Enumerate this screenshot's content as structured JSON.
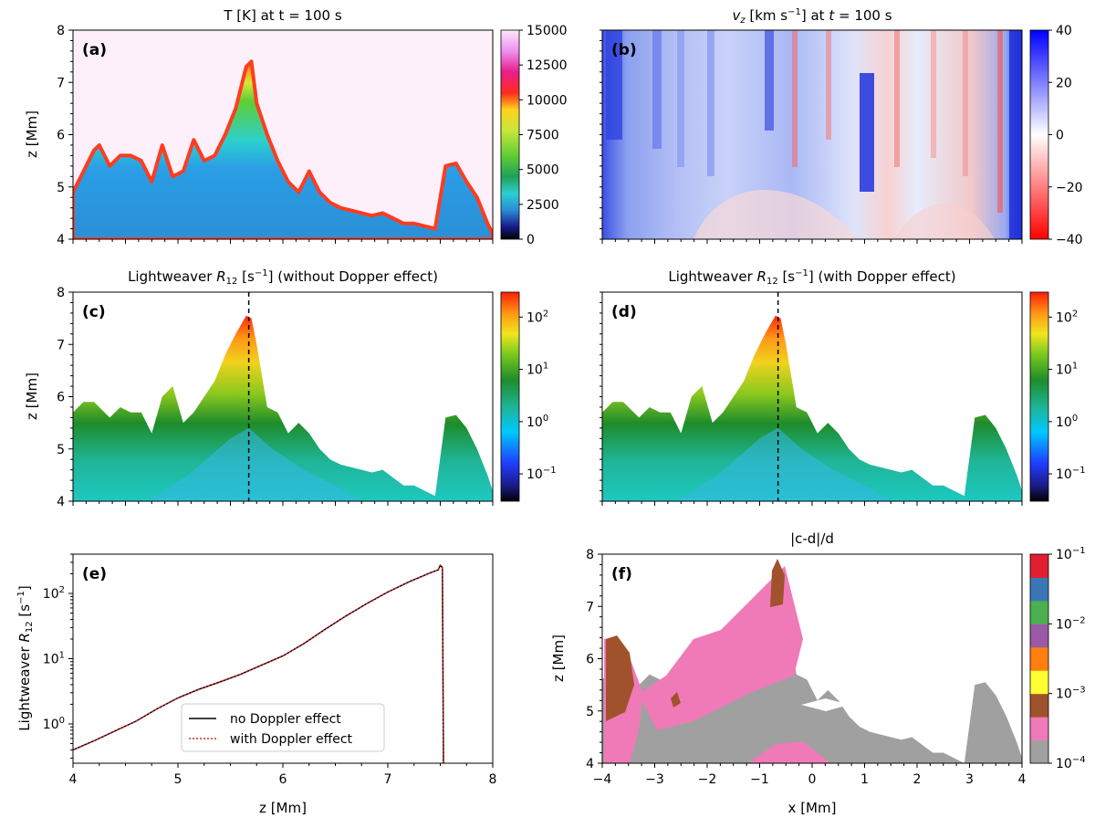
{
  "chart_data": [
    {
      "panel": "(a)",
      "type": "heatmap",
      "title": "T [K] at t = 100 s",
      "xlim": [
        -4,
        4
      ],
      "ylim": [
        4,
        8
      ],
      "ylabel": "z [Mm]",
      "yticks": [
        "4",
        "5",
        "6",
        "7",
        "8"
      ],
      "colorbar": {
        "scale": "linear",
        "range": [
          0,
          15000
        ],
        "ticks": [
          "0",
          "2500",
          "5000",
          "7500",
          "10000",
          "12500",
          "15000"
        ]
      },
      "boundary_x": [
        -4,
        -3.8,
        -3.6,
        -3.5,
        -3.3,
        -3.1,
        -2.9,
        -2.7,
        -2.5,
        -2.3,
        -2.1,
        -1.9,
        -1.7,
        -1.5,
        -1.3,
        -1.1,
        -0.9,
        -0.7,
        -0.6,
        -0.5,
        -0.3,
        -0.1,
        0.1,
        0.3,
        0.5,
        0.7,
        0.9,
        1.1,
        1.3,
        1.5,
        1.7,
        1.9,
        2.1,
        2.3,
        2.5,
        2.7,
        2.9,
        3.1,
        3.3,
        3.5,
        3.7,
        3.9,
        4
      ],
      "boundary_z": [
        4.9,
        5.3,
        5.7,
        5.8,
        5.4,
        5.6,
        5.6,
        5.5,
        5.1,
        5.8,
        5.2,
        5.3,
        5.9,
        5.5,
        5.6,
        6.0,
        6.5,
        7.3,
        7.4,
        6.6,
        6.0,
        5.5,
        5.1,
        4.9,
        5.3,
        4.9,
        4.7,
        4.6,
        4.55,
        4.5,
        4.45,
        4.5,
        4.4,
        4.3,
        4.3,
        4.25,
        4.2,
        5.4,
        5.45,
        5.1,
        4.8,
        4.3,
        4.1
      ]
    },
    {
      "panel": "(b)",
      "type": "heatmap",
      "title": "v_z [km s^-1] at t = 100 s",
      "xlim": [
        -4,
        4
      ],
      "ylim": [
        4,
        8
      ],
      "colorbar": {
        "scale": "linear",
        "range": [
          -40,
          40
        ],
        "ticks": [
          "40",
          "20",
          "0",
          "−20",
          "−40"
        ]
      }
    },
    {
      "panel": "(c)",
      "type": "heatmap",
      "title": "Lightweaver R12 [s^-1] (without Dopper effect)",
      "xlim": [
        -4,
        4
      ],
      "ylim": [
        4,
        8
      ],
      "ylabel": "z [Mm]",
      "yticks": [
        "4",
        "5",
        "6",
        "7",
        "8"
      ],
      "colorbar": {
        "scale": "log",
        "range": [
          0.03,
          300
        ],
        "ticks": [
          "10^2",
          "10^1",
          "10^0",
          "10^-1"
        ]
      },
      "cut_x": -0.65,
      "boundary_x": [
        -4,
        -3.8,
        -3.6,
        -3.3,
        -3.1,
        -2.9,
        -2.7,
        -2.5,
        -2.3,
        -2.1,
        -1.9,
        -1.7,
        -1.5,
        -1.3,
        -1.1,
        -0.9,
        -0.7,
        -0.6,
        -0.5,
        -0.3,
        -0.1,
        0.1,
        0.3,
        0.5,
        0.7,
        0.9,
        1.1,
        1.3,
        1.5,
        1.7,
        1.9,
        2.1,
        2.3,
        2.5,
        2.7,
        2.9,
        3.1,
        3.3,
        3.5,
        3.7,
        3.9,
        4
      ],
      "boundary_z": [
        5.7,
        5.9,
        5.9,
        5.6,
        5.8,
        5.7,
        5.7,
        5.3,
        6.0,
        6.2,
        5.5,
        5.7,
        6.0,
        6.3,
        6.8,
        7.2,
        7.55,
        7.5,
        7.0,
        5.8,
        5.7,
        5.3,
        5.5,
        5.3,
        5.0,
        4.8,
        4.7,
        4.65,
        4.6,
        4.55,
        4.6,
        4.45,
        4.3,
        4.3,
        4.2,
        4.1,
        5.6,
        5.65,
        5.4,
        5.0,
        4.5,
        4.2
      ]
    },
    {
      "panel": "(d)",
      "type": "heatmap",
      "title": "Lightweaver R12 [s^-1] (with Dopper effect)",
      "xlim": [
        -4,
        4
      ],
      "ylim": [
        4,
        8
      ],
      "colorbar": {
        "scale": "log",
        "range": [
          0.03,
          300
        ],
        "ticks": [
          "10^2",
          "10^1",
          "10^0",
          "10^-1"
        ]
      },
      "cut_x": -0.65
    },
    {
      "panel": "(e)",
      "type": "line",
      "xlabel": "z [Mm]",
      "ylabel": "Lightweaver R12 [s^-1]",
      "xlim": [
        4,
        8
      ],
      "xticks": [
        "4",
        "5",
        "6",
        "7",
        "8"
      ],
      "yscale": "log",
      "ylim": [
        0.25,
        400
      ],
      "yticks": [
        "10^0",
        "10^1",
        "10^2"
      ],
      "legend": {
        "placement": "lower-center"
      },
      "x": [
        4.0,
        4.2,
        4.4,
        4.6,
        4.8,
        5.0,
        5.2,
        5.4,
        5.6,
        5.8,
        6.0,
        6.2,
        6.4,
        6.6,
        6.8,
        7.0,
        7.2,
        7.4,
        7.48,
        7.5,
        7.52,
        7.53,
        7.53
      ],
      "series": [
        {
          "name": "no Doppler effect",
          "color": "#000000",
          "dash": "solid",
          "values": [
            0.4,
            0.55,
            0.78,
            1.1,
            1.7,
            2.5,
            3.4,
            4.4,
            5.8,
            8.0,
            11,
            17,
            28,
            45,
            70,
            105,
            150,
            205,
            230,
            270,
            250,
            0.25,
            0.25
          ]
        },
        {
          "name": "with Doppler effect",
          "color": "#d62728",
          "dash": "dotted",
          "values": [
            0.4,
            0.55,
            0.78,
            1.1,
            1.7,
            2.5,
            3.4,
            4.4,
            5.8,
            8.0,
            11,
            17,
            28,
            45,
            70,
            105,
            150,
            205,
            230,
            270,
            250,
            0.25,
            0.25
          ]
        }
      ]
    },
    {
      "panel": "(f)",
      "type": "heatmap",
      "title": "|c-d|/d",
      "xlabel": "x [Mm]",
      "ylabel": "z [Mm]",
      "xlim": [
        -4,
        4
      ],
      "ylim": [
        4,
        8
      ],
      "xticks": [
        "−4",
        "−3",
        "−2",
        "−1",
        "0",
        "1",
        "2",
        "3",
        "4"
      ],
      "yticks": [
        "4",
        "5",
        "6",
        "7",
        "8"
      ],
      "colorbar": {
        "scale": "log-discrete",
        "range": [
          0.0001,
          0.1
        ],
        "ticks": [
          "10^-1",
          "10^-2",
          "10^-3",
          "10^-4"
        ],
        "level_colors": [
          "#a0a0a0",
          "#f07ab8",
          "#a0522d",
          "#ffff33",
          "#ff7f0e",
          "#9b59a6",
          "#4caf50",
          "#3a78b5",
          "#e02030"
        ]
      }
    }
  ],
  "labels": {
    "panel_a": "(a)",
    "panel_b": "(b)",
    "panel_c": "(c)",
    "panel_d": "(d)",
    "panel_e": "(e)",
    "panel_f": "(f)",
    "title_a": "T [K] at t = 100 s",
    "title_b": "v z [km s⁻¹] at t = 100 s",
    "title_c": "Lightweaver R12 [s⁻¹] (without Dopper effect)",
    "title_d": "Lightweaver R12 [s⁻¹] (with Dopper effect)",
    "title_f": "|c-d|/d",
    "z_mm": "z [Mm]",
    "x_mm": "x [Mm]",
    "e_ylabel": "Lightweaver R12 [s⁻¹]",
    "legend_no": "no Doppler effect",
    "legend_with": "with Doppler effect"
  }
}
